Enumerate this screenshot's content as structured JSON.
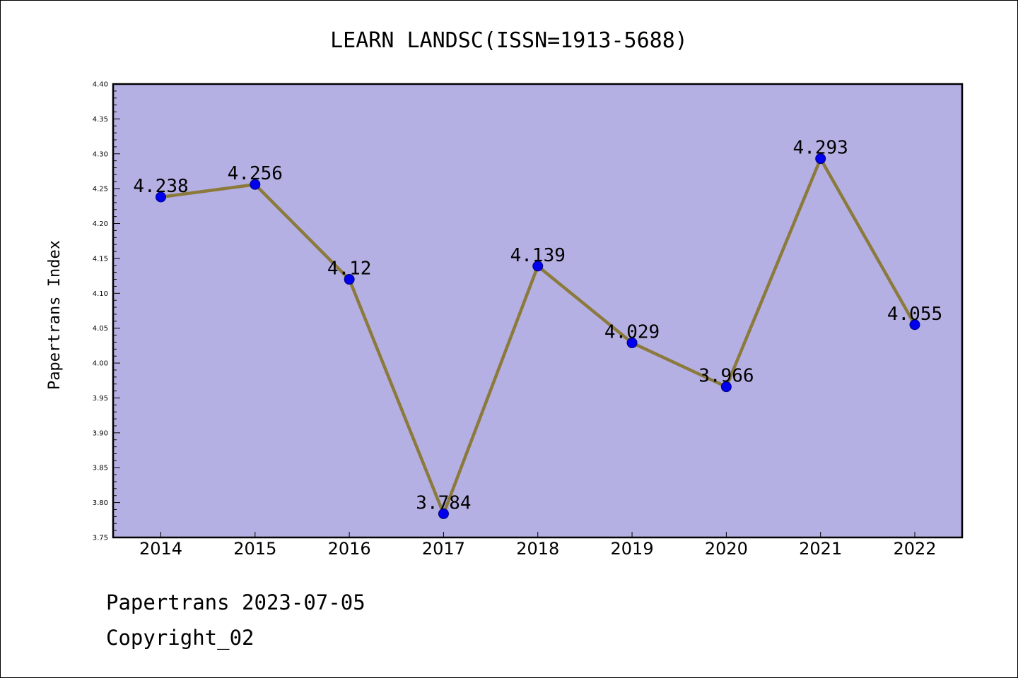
{
  "chart_data": {
    "type": "line",
    "title": "LEARN LANDSC(ISSN=1913-5688)",
    "xlabel": "",
    "ylabel": "Papertrans Index",
    "categories": [
      "2014",
      "2015",
      "2016",
      "2017",
      "2018",
      "2019",
      "2020",
      "2021",
      "2022"
    ],
    "series": [
      {
        "values": [
          4.238,
          4.256,
          4.12,
          3.784,
          4.139,
          4.029,
          3.966,
          4.293,
          4.055
        ],
        "labels": [
          "4.238",
          "4.256",
          "4.12",
          "3.784",
          "4.139",
          "4.029",
          "3.966",
          "4.293",
          "4.055"
        ]
      }
    ],
    "ylim": [
      3.75,
      4.4
    ],
    "yticks": [
      "3.75",
      "3.80",
      "3.85",
      "3.90",
      "3.95",
      "4.00",
      "4.05",
      "4.10",
      "4.15",
      "4.20",
      "4.25",
      "4.30",
      "4.35",
      "4.40"
    ],
    "grid": false,
    "colors": {
      "plot_background": "#b5b0e3",
      "line": "#8b7a3c",
      "marker": "#0000ee",
      "marker_edge": "#00007a"
    }
  },
  "footer": {
    "line1": "Papertrans 2023-07-05",
    "line2": "Copyright_02"
  }
}
